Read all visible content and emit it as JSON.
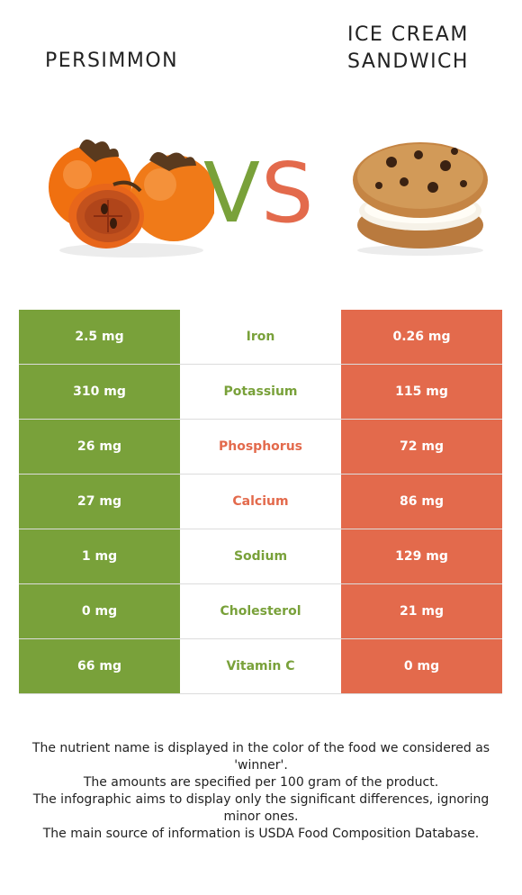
{
  "header": {
    "left_food": "PERSIMMON",
    "right_food_line1": "ICE CREAM",
    "right_food_line2": "SANDWICH",
    "vs_v": "V",
    "vs_s": "S"
  },
  "colors": {
    "left_accent": "#79a13a",
    "right_accent": "#e36a4c"
  },
  "rows": [
    {
      "left": "2.5 mg",
      "nutrient": "Iron",
      "right": "0.26 mg",
      "winner": "left"
    },
    {
      "left": "310 mg",
      "nutrient": "Potassium",
      "right": "115 mg",
      "winner": "left"
    },
    {
      "left": "26 mg",
      "nutrient": "Phosphorus",
      "right": "72 mg",
      "winner": "right"
    },
    {
      "left": "27 mg",
      "nutrient": "Calcium",
      "right": "86 mg",
      "winner": "right"
    },
    {
      "left": "1 mg",
      "nutrient": "Sodium",
      "right": "129 mg",
      "winner": "left"
    },
    {
      "left": "0 mg",
      "nutrient": "Cholesterol",
      "right": "21 mg",
      "winner": "left"
    },
    {
      "left": "66 mg",
      "nutrient": "Vitamin C",
      "right": "0 mg",
      "winner": "left"
    }
  ],
  "footer": {
    "line1": "The nutrient name is displayed in the color of the food we considered as 'winner'.",
    "line2": "The amounts are specified per 100 gram of the product.",
    "line3": "The infographic aims to display only the significant differences, ignoring minor ones.",
    "line4": "The main source of information is USDA Food Composition Database."
  }
}
